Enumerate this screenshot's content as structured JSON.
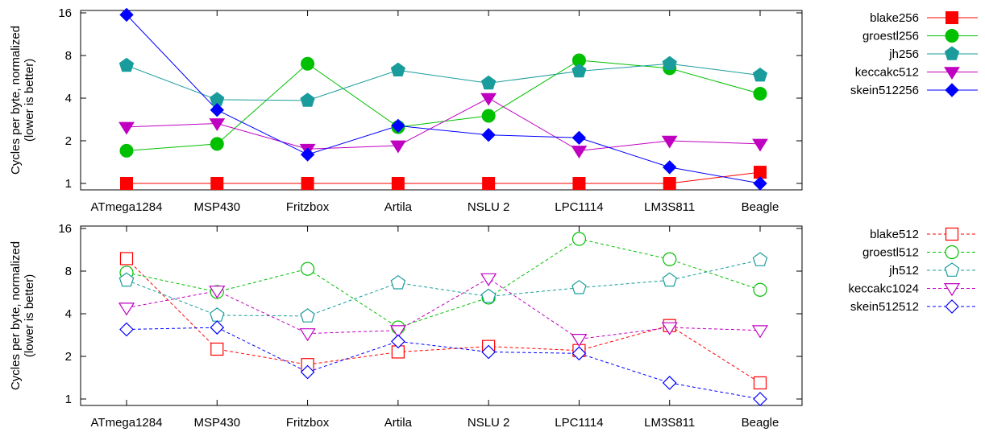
{
  "chart_data": [
    {
      "type": "line",
      "ylabel": "Cycles per byte, normalized (lower is better)",
      "ylabel_lines": [
        "Cycles per byte, normalized",
        "(lower is better)"
      ],
      "yscale": "log2",
      "ylim": [
        1,
        16
      ],
      "yticks": [
        1,
        2,
        4,
        8,
        16
      ],
      "categories": [
        "ATmega1284",
        "MSP430",
        "Fritzbox",
        "Artila",
        "NSLU 2",
        "LPC1114",
        "LM3S811",
        "Beagle"
      ],
      "legend_position": "right",
      "series": [
        {
          "name": "blake256",
          "color": "#ff0000",
          "marker": "square",
          "filled": true,
          "dashed": false,
          "values": [
            1.0,
            1.0,
            1.0,
            1.0,
            1.0,
            1.0,
            1.0,
            1.2
          ]
        },
        {
          "name": "groestl256",
          "color": "#00c000",
          "marker": "circle",
          "filled": true,
          "dashed": false,
          "values": [
            1.7,
            1.9,
            7.0,
            2.5,
            3.0,
            7.4,
            6.5,
            4.3
          ]
        },
        {
          "name": "jh256",
          "color": "#1a9c9c",
          "marker": "pentagon",
          "filled": true,
          "dashed": false,
          "values": [
            6.8,
            3.9,
            3.85,
            6.3,
            5.1,
            6.2,
            7.0,
            5.8
          ]
        },
        {
          "name": "keccakc512",
          "color": "#c000c0",
          "marker": "triangle-down",
          "filled": true,
          "dashed": false,
          "values": [
            2.5,
            2.65,
            1.75,
            1.85,
            4.0,
            1.7,
            2.0,
            1.9
          ]
        },
        {
          "name": "skein512256",
          "color": "#0000ff",
          "marker": "diamond",
          "filled": true,
          "dashed": false,
          "values": [
            15.5,
            3.3,
            1.6,
            2.55,
            2.2,
            2.1,
            1.3,
            1.0
          ]
        }
      ]
    },
    {
      "type": "line",
      "ylabel": "Cycles per byte, normalized (lower is better)",
      "ylabel_lines": [
        "Cycles per byte, normalized",
        "(lower is better)"
      ],
      "yscale": "log2",
      "ylim": [
        1,
        16
      ],
      "yticks": [
        1,
        2,
        4,
        8,
        16
      ],
      "categories": [
        "ATmega1284",
        "MSP430",
        "Fritzbox",
        "Artila",
        "NSLU 2",
        "LPC1114",
        "LM3S811",
        "Beagle"
      ],
      "legend_position": "right",
      "series": [
        {
          "name": "blake512",
          "color": "#ff0000",
          "marker": "square",
          "filled": false,
          "dashed": true,
          "values": [
            9.8,
            2.25,
            1.75,
            2.15,
            2.35,
            2.2,
            3.3,
            1.3
          ]
        },
        {
          "name": "groestl512",
          "color": "#00c000",
          "marker": "circle",
          "filled": false,
          "dashed": true,
          "values": [
            7.8,
            5.7,
            8.3,
            3.2,
            5.2,
            13.5,
            9.7,
            5.9
          ]
        },
        {
          "name": "jh512",
          "color": "#1a9c9c",
          "marker": "pentagon",
          "filled": false,
          "dashed": true,
          "values": [
            6.9,
            3.9,
            3.85,
            6.6,
            5.3,
            6.1,
            6.9,
            9.6
          ]
        },
        {
          "name": "keccakc1024",
          "color": "#c000c0",
          "marker": "triangle-down",
          "filled": false,
          "dashed": true,
          "values": [
            4.4,
            5.8,
            2.9,
            3.05,
            7.1,
            2.65,
            3.2,
            3.05
          ]
        },
        {
          "name": "skein512512",
          "color": "#0000ff",
          "marker": "diamond",
          "filled": false,
          "dashed": true,
          "values": [
            3.1,
            3.2,
            1.55,
            2.55,
            2.15,
            2.1,
            1.3,
            1.0
          ]
        }
      ]
    }
  ]
}
